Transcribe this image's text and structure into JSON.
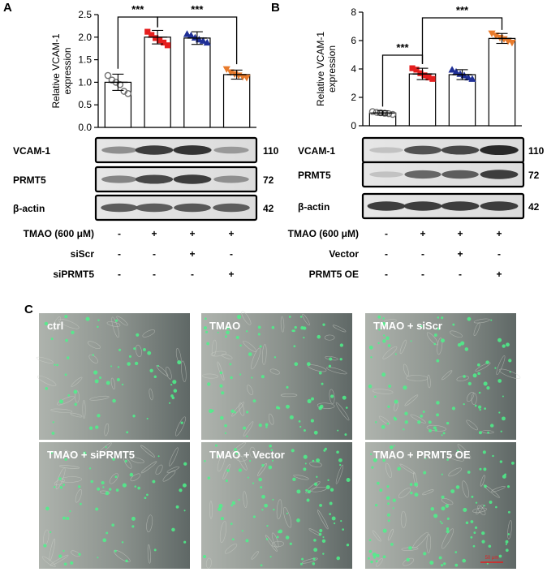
{
  "panels": {
    "a": "A",
    "b": "B",
    "c": "C"
  },
  "significance": "***",
  "chart_data": [
    {
      "type": "bar",
      "ylabel": "Relative VCAM-1 expression",
      "ylabel_lines": [
        "Relative VCAM-1",
        "expression"
      ],
      "ylim": [
        0,
        2.5
      ],
      "yticks": [
        "0.0",
        "0.5",
        "1.0",
        "1.5",
        "2.0",
        "2.5"
      ],
      "categories": [
        "ctrl",
        "TMAO",
        "TMAO + siScr",
        "TMAO + siPRMT5"
      ],
      "values": [
        1.0,
        2.0,
        1.98,
        1.17
      ],
      "errors": [
        0.18,
        0.15,
        0.14,
        0.1
      ],
      "colors": [
        "#707070",
        "#e51e1e",
        "#1f2f96",
        "#e87a2b"
      ],
      "markers": [
        "circle",
        "square",
        "triangle-up",
        "triangle-down"
      ],
      "points": [
        [
          1.15,
          1.05,
          1.0,
          0.95,
          0.8,
          0.75
        ],
        [
          2.12,
          2.05,
          1.98,
          1.93,
          1.88,
          1.82
        ],
        [
          2.07,
          2.04,
          1.99,
          1.95,
          1.92,
          1.88
        ],
        [
          1.29,
          1.22,
          1.18,
          1.15,
          1.12,
          1.1
        ]
      ],
      "comparisons": [
        [
          0,
          1,
          "***"
        ],
        [
          1,
          3,
          "***"
        ]
      ]
    },
    {
      "type": "bar",
      "ylabel": "Relative VCAM-1 expression",
      "ylabel_lines": [
        "Relative VCAM-1",
        "expression"
      ],
      "ylim": [
        0,
        8
      ],
      "yticks": [
        "0",
        "2",
        "4",
        "6",
        "8"
      ],
      "categories": [
        "ctrl",
        "TMAO",
        "TMAO + Vector",
        "TMAO + PRMT5 OE"
      ],
      "values": [
        0.9,
        3.65,
        3.6,
        6.15
      ],
      "errors": [
        0.15,
        0.4,
        0.35,
        0.35
      ],
      "colors": [
        "#707070",
        "#e51e1e",
        "#1f2f96",
        "#e87a2b"
      ],
      "markers": [
        "circle",
        "square",
        "triangle-up",
        "triangle-down"
      ],
      "points": [
        [
          1.0,
          0.95,
          0.92,
          0.88,
          0.85,
          0.8
        ],
        [
          4.05,
          3.95,
          3.7,
          3.55,
          3.4,
          3.3
        ],
        [
          3.95,
          3.8,
          3.65,
          3.55,
          3.4,
          3.3
        ],
        [
          6.5,
          6.35,
          6.2,
          6.1,
          5.95,
          5.85
        ]
      ],
      "comparisons": [
        [
          0,
          1,
          "***"
        ],
        [
          1,
          3,
          "***"
        ]
      ]
    }
  ],
  "blot_a": {
    "rows": [
      {
        "label": "VCAM-1",
        "kda": "110",
        "intensity": [
          0.45,
          0.85,
          0.9,
          0.4
        ]
      },
      {
        "label": "PRMT5",
        "kda": "72",
        "intensity": [
          0.5,
          0.8,
          0.85,
          0.45
        ]
      },
      {
        "label": "β-actin",
        "kda": "42",
        "intensity": [
          0.7,
          0.7,
          0.72,
          0.7
        ]
      }
    ],
    "conditions": [
      {
        "label": "TMAO (600 μM)",
        "signs": [
          "-",
          "+",
          "+",
          "+"
        ]
      },
      {
        "label": "siScr",
        "signs": [
          "-",
          "-",
          "+",
          "-"
        ]
      },
      {
        "label": "siPRMT5",
        "signs": [
          "-",
          "-",
          "-",
          "+"
        ]
      }
    ]
  },
  "blot_b": {
    "rows": [
      {
        "label": "VCAM-1",
        "kda": "110",
        "intensity": [
          0.2,
          0.75,
          0.8,
          0.95
        ]
      },
      {
        "label": "PRMT5",
        "kda": "72",
        "intensity": [
          0.2,
          0.65,
          0.7,
          0.85
        ]
      },
      {
        "label": "β-actin",
        "kda": "42",
        "intensity": [
          0.85,
          0.85,
          0.85,
          0.85
        ]
      }
    ],
    "conditions": [
      {
        "label": "TMAO (600 μM)",
        "signs": [
          "-",
          "+",
          "+",
          "+"
        ]
      },
      {
        "label": "Vector",
        "signs": [
          "-",
          "-",
          "+",
          "-"
        ]
      },
      {
        "label": "PRMT5 OE",
        "signs": [
          "-",
          "-",
          "-",
          "+"
        ]
      }
    ]
  },
  "micrographs": [
    {
      "label": "ctrl",
      "density": 0.35
    },
    {
      "label": "TMAO",
      "density": 0.7
    },
    {
      "label": "TMAO + siScr",
      "density": 0.75
    },
    {
      "label": "TMAO + siPRMT5",
      "density": 0.4
    },
    {
      "label": "TMAO + Vector",
      "density": 0.85
    },
    {
      "label": "TMAO + PRMT5 OE",
      "density": 0.9
    }
  ],
  "scale_bar": "50 μm"
}
